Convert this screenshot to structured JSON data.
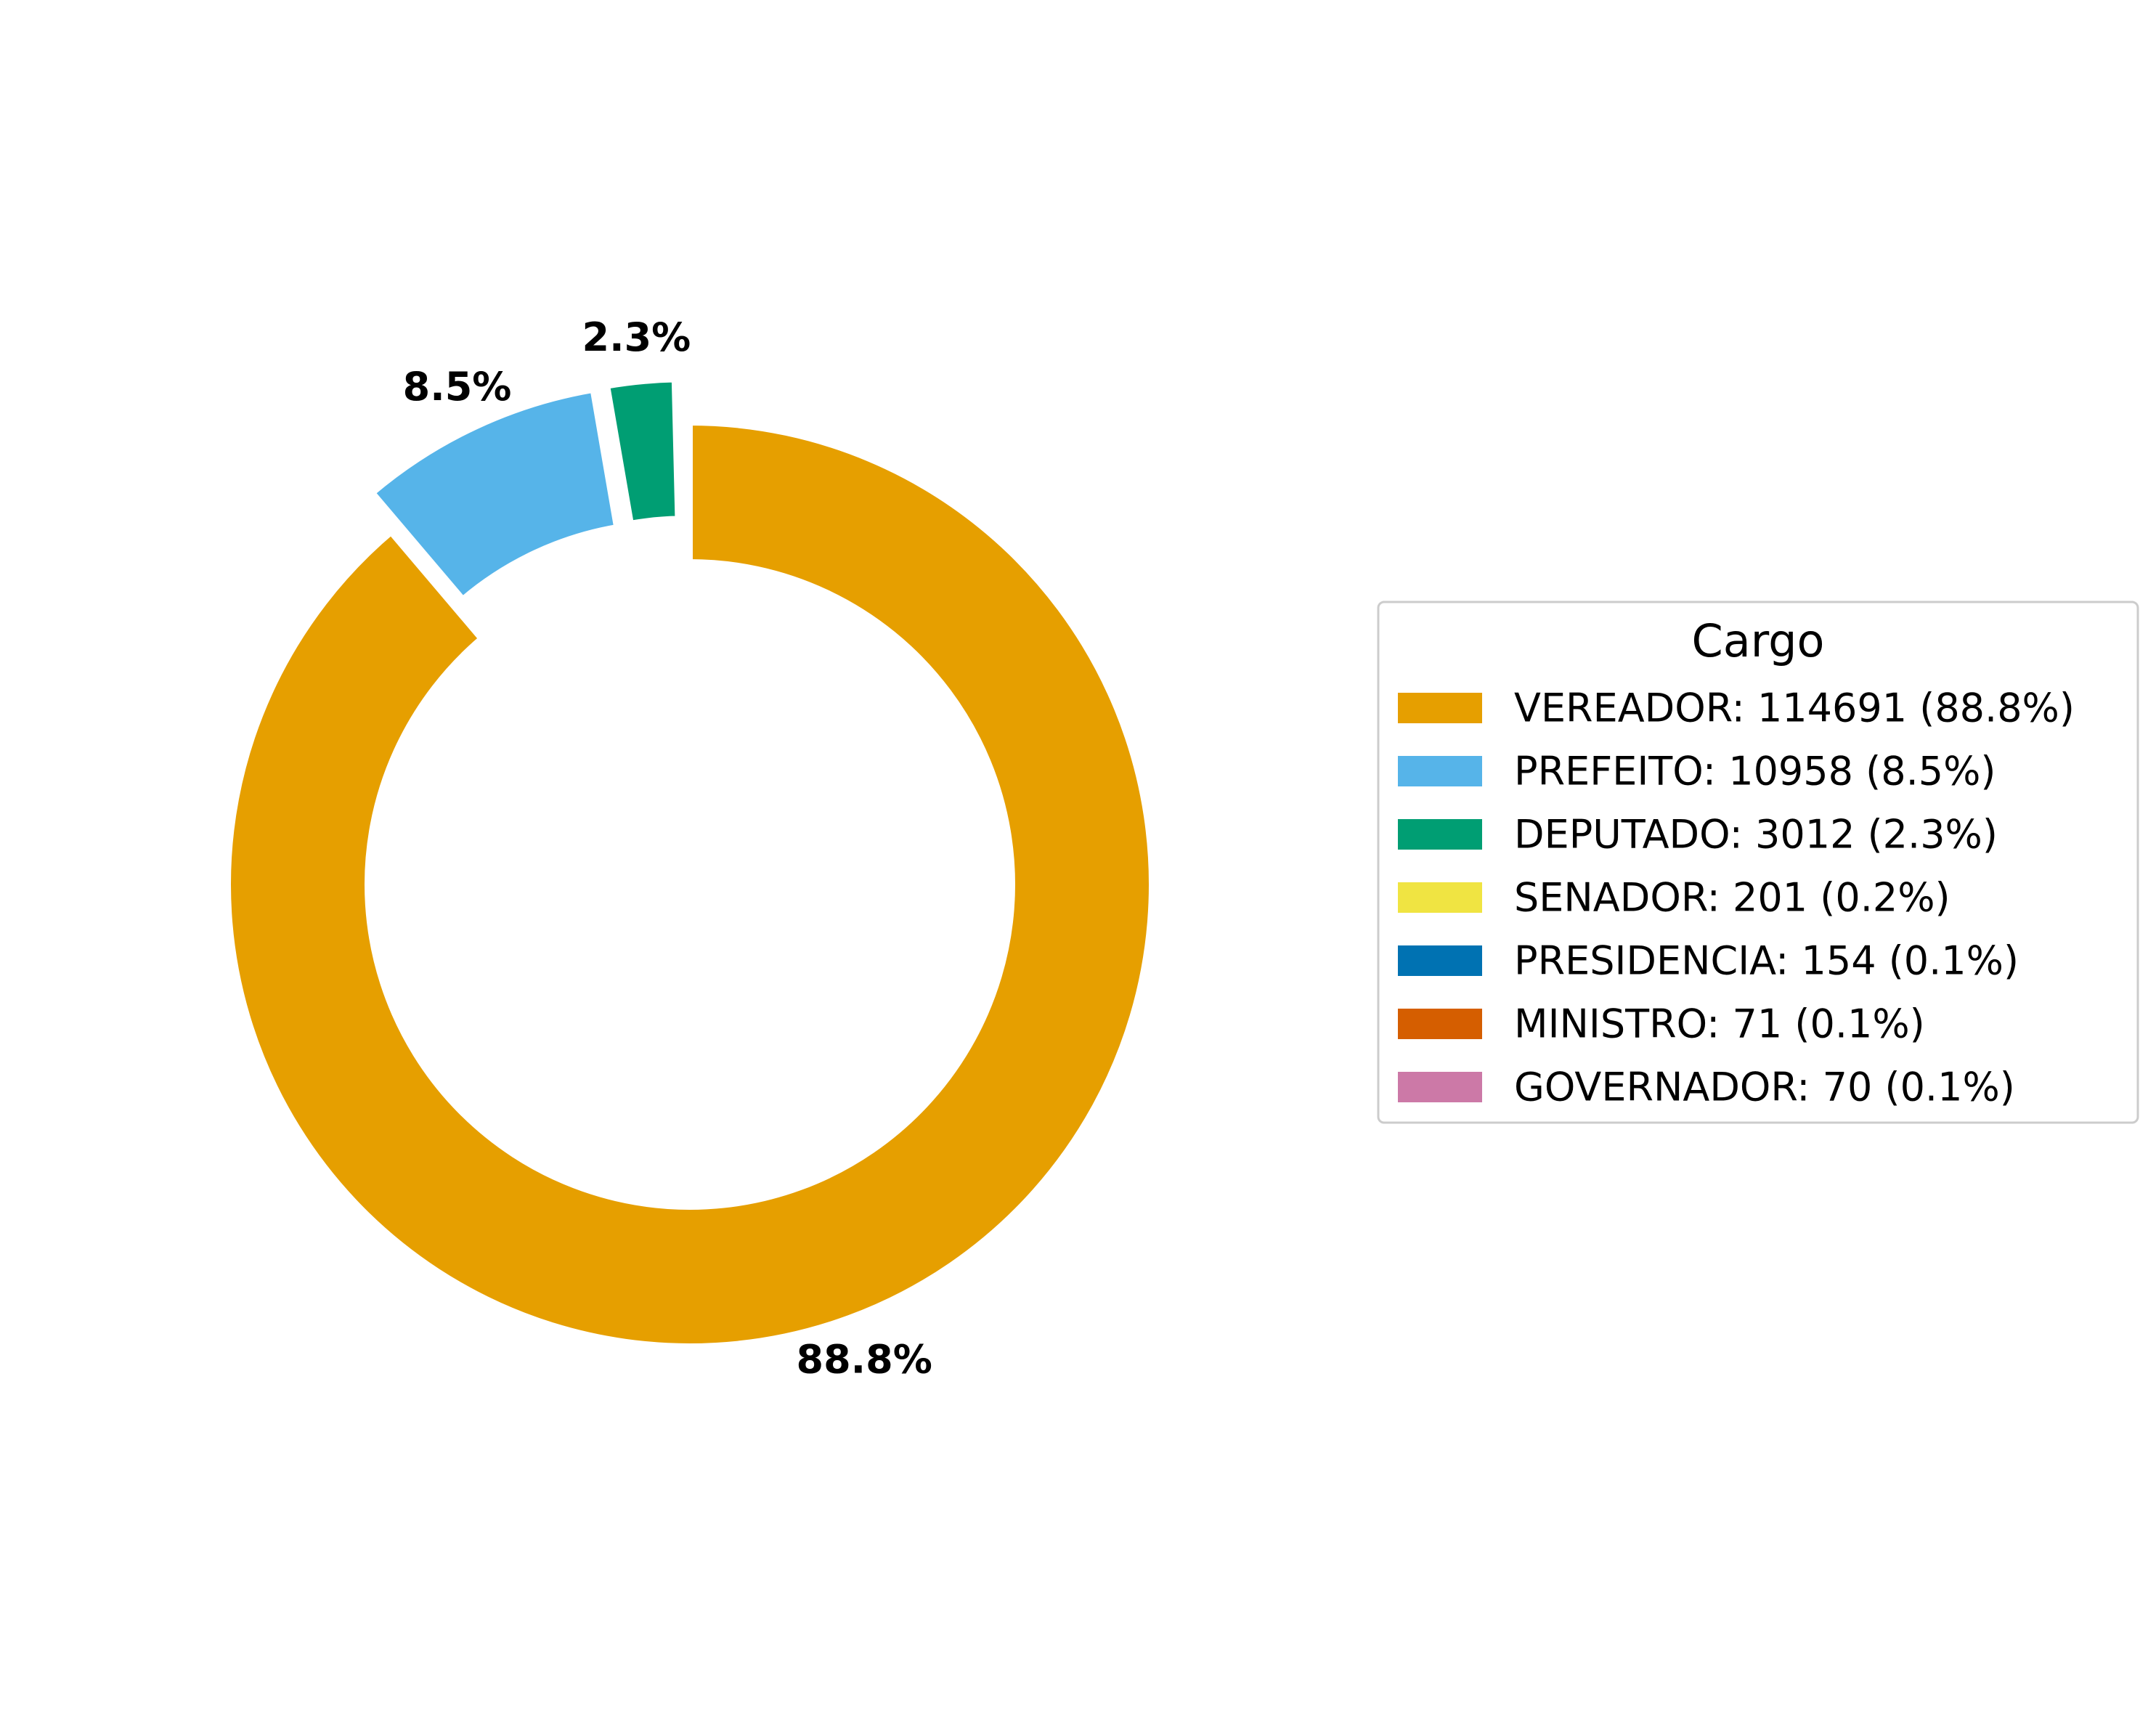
{
  "chart_data": {
    "type": "pie",
    "style": "donut",
    "legend": {
      "title": "Cargo",
      "placement": "right"
    },
    "slices": [
      {
        "label": "VEREADOR",
        "value": 114691,
        "percent_label": "88.8%",
        "legend_text": "VEREADOR: 114691 (88.8%)",
        "color": "#E69F00",
        "explode": 0
      },
      {
        "label": "PREFEITO",
        "value": 10958,
        "percent_label": "8.5%",
        "legend_text": "PREFEITO: 10958 (8.5%)",
        "color": "#56B4E9",
        "explode": 1
      },
      {
        "label": "DEPUTADO",
        "value": 3012,
        "percent_label": "2.3%",
        "legend_text": "DEPUTADO: 3012 (2.3%)",
        "color": "#009E73",
        "explode": 1
      },
      {
        "label": "SENADOR",
        "value": 201,
        "percent_label": "",
        "legend_text": "SENADOR: 201 (0.2%)",
        "color": "#F0E442",
        "explode": 1
      },
      {
        "label": "PRESIDENCIA",
        "value": 154,
        "percent_label": "",
        "legend_text": "PRESIDENCIA: 154 (0.1%)",
        "color": "#0072B2",
        "explode": 1
      },
      {
        "label": "MINISTRO",
        "value": 71,
        "percent_label": "",
        "legend_text": "MINISTRO: 71 (0.1%)",
        "color": "#D55E00",
        "explode": 1
      },
      {
        "label": "GOVERNADOR",
        "value": 70,
        "percent_label": "",
        "legend_text": "GOVERNADOR: 70 (0.1%)",
        "color": "#CC79A7",
        "explode": 1
      }
    ]
  }
}
